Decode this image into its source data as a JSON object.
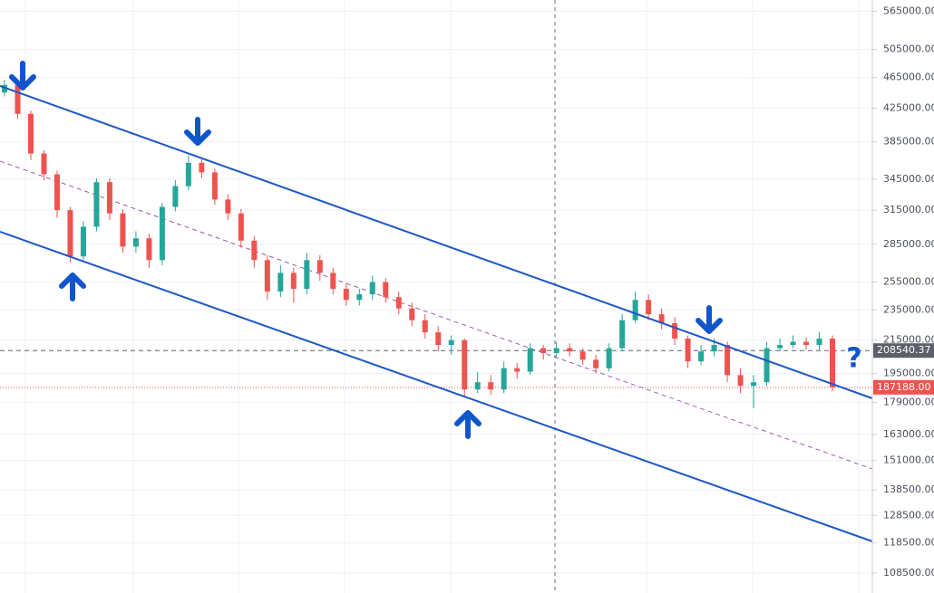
{
  "chart_data": {
    "type": "candlestick",
    "log_scale": true,
    "grid": true,
    "ylim": [
      102300,
      584000
    ],
    "yticks": [
      {
        "value": 565000,
        "label": "565000.00"
      },
      {
        "value": 505000,
        "label": "505000.00"
      },
      {
        "value": 465000,
        "label": "465000.00"
      },
      {
        "value": 425000,
        "label": "425000.00"
      },
      {
        "value": 385000,
        "label": "385000.00"
      },
      {
        "value": 345000,
        "label": "345000.00"
      },
      {
        "value": 315000,
        "label": "315000.00"
      },
      {
        "value": 285000,
        "label": "285000.00"
      },
      {
        "value": 255000,
        "label": "255000.00"
      },
      {
        "value": 235000,
        "label": "235000.00"
      },
      {
        "value": 215000,
        "label": "215000.00"
      },
      {
        "value": 195000,
        "label": "195000.00"
      },
      {
        "value": 179000,
        "label": "179000.00"
      },
      {
        "value": 163000,
        "label": "163000.00"
      },
      {
        "value": 151000,
        "label": "151000.00"
      },
      {
        "value": 138500,
        "label": "138500.00"
      },
      {
        "value": 128500,
        "label": "128500.00"
      },
      {
        "value": 118500,
        "label": "118500.00"
      },
      {
        "value": 108500,
        "label": "108500.00"
      }
    ],
    "up_color": "#26a69a",
    "down_color": "#ef5350",
    "open": [
      445000,
      455000,
      418000,
      372000,
      350000,
      315000,
      275000,
      300000,
      342000,
      312000,
      283000,
      290000,
      272000,
      318000,
      338000,
      362000,
      352000,
      325000,
      312000,
      288000,
      272000,
      248000,
      262000,
      250000,
      272000,
      262000,
      250000,
      242000,
      246000,
      255000,
      244000,
      236000,
      228000,
      220000,
      212000,
      215000,
      186000,
      190000,
      186000,
      198000,
      196000,
      210000,
      207000,
      210000,
      208000,
      203000,
      198000,
      210000,
      228000,
      242000,
      232000,
      226000,
      216000,
      202000,
      208000,
      212000,
      194000,
      188000,
      190000,
      210000,
      212000,
      214000,
      212000,
      216000
    ],
    "high": [
      462000,
      460000,
      422000,
      376000,
      354000,
      318000,
      305000,
      346000,
      346000,
      316000,
      296000,
      294000,
      322000,
      344000,
      370000,
      366000,
      356000,
      330000,
      316000,
      292000,
      276000,
      268000,
      266000,
      278000,
      276000,
      266000,
      254000,
      250000,
      260000,
      258000,
      248000,
      240000,
      232000,
      224000,
      218000,
      216000,
      196000,
      194000,
      202000,
      201000,
      213000,
      212000,
      214000,
      213000,
      210000,
      206000,
      213000,
      232000,
      248000,
      246000,
      236000,
      230000,
      218000,
      212000,
      216000,
      214000,
      198000,
      194000,
      214000,
      216000,
      218000,
      217000,
      220000,
      218000
    ],
    "low": [
      440000,
      412000,
      365000,
      344000,
      308000,
      270000,
      272000,
      296000,
      306000,
      278000,
      278000,
      266000,
      268000,
      314000,
      334000,
      346000,
      320000,
      306000,
      282000,
      266000,
      242000,
      244000,
      240000,
      246000,
      256000,
      246000,
      238000,
      238000,
      242000,
      240000,
      232000,
      224000,
      216000,
      208000,
      206000,
      182000,
      184000,
      183000,
      184000,
      192000,
      194000,
      203000,
      204000,
      205000,
      200000,
      195000,
      196000,
      208000,
      226000,
      228000,
      222000,
      212000,
      198000,
      200000,
      205000,
      190000,
      184000,
      176000,
      188000,
      208000,
      210000,
      209000,
      209000,
      185000
    ],
    "close": [
      455000,
      418000,
      372000,
      350000,
      315000,
      275000,
      300000,
      342000,
      312000,
      283000,
      290000,
      272000,
      318000,
      338000,
      362000,
      352000,
      325000,
      312000,
      288000,
      272000,
      248000,
      262000,
      250000,
      272000,
      262000,
      250000,
      242000,
      246000,
      255000,
      244000,
      236000,
      228000,
      220000,
      212000,
      215000,
      186000,
      190000,
      186000,
      198000,
      196000,
      210000,
      207000,
      210000,
      208000,
      203000,
      198000,
      210000,
      228000,
      242000,
      232000,
      226000,
      216000,
      202000,
      208000,
      212000,
      194000,
      188000,
      190000,
      210000,
      212000,
      214000,
      212000,
      216000,
      187188
    ],
    "price_lines": [
      {
        "value": 208540.37,
        "label": "208540.37",
        "color": "#5d606b"
      },
      {
        "value": 187188,
        "label": "187188.00",
        "color": "#ef5350"
      }
    ],
    "annotation": "?"
  }
}
